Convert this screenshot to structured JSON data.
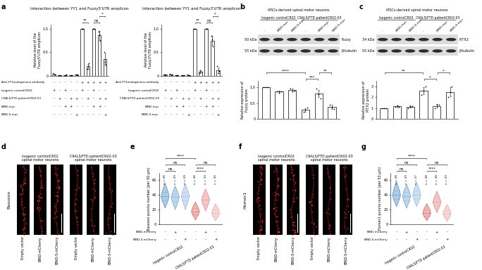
{
  "panel_labels": [
    "a",
    "b",
    "c",
    "d",
    "e",
    "f",
    "g"
  ],
  "chart_data": [
    {
      "type": "bar",
      "title": "Interaction between YY1 and Fuzzy5'UTR amplicon",
      "y_label": "Relative level of the\nFuzzy5'UTR amplicon",
      "categories": [
        null,
        null,
        null,
        null,
        null,
        null,
        null,
        null,
        null,
        null
      ],
      "values": [
        0.03,
        0.01,
        0.01,
        0.01,
        0.02,
        1.0,
        0.2,
        1.0,
        0.86,
        0.35
      ],
      "errors": [
        0.01,
        0.005,
        0.005,
        0.005,
        0.005,
        0,
        0.05,
        0,
        0.1,
        0.12
      ],
      "points": [
        [
          0.05,
          0.02,
          0.02
        ],
        [
          0.01,
          0.01,
          0.0
        ],
        [
          0.0,
          0.01,
          0.02
        ],
        [
          0.01,
          0.0,
          0.01
        ],
        [
          0.03,
          0.02,
          0.01
        ],
        [
          1,
          1,
          1
        ],
        [
          0.15,
          0.2,
          0.26
        ],
        [
          1,
          1,
          1
        ],
        [
          0.95,
          0.88,
          0.74
        ],
        [
          0.5,
          0.3,
          0.24
        ]
      ],
      "color": "#ffffff",
      "ylim": [
        0,
        1.1
      ],
      "yticks": [
        0,
        0.5,
        {
          "value": 1,
          "label": "1.0"
        }
      ],
      "tick_labels": "y",
      "annotations": [
        {
          "from": 5,
          "to": 6,
          "text": "**"
        },
        {
          "from": 7,
          "to": 8,
          "text": "ns"
        },
        {
          "from": 8,
          "to": 9,
          "text": "*"
        }
      ],
      "condition_rows": [
        {
          "label": "Anti-YY1endogenous antibody",
          "marks": [
            "-",
            "-",
            "-",
            "-",
            "-",
            "+",
            "+",
            "+",
            "+",
            "+"
          ]
        },
        {
          "label": "Isogenic controlCR02",
          "marks": [
            "+",
            "-",
            "+",
            "-",
            "-",
            "+",
            "-",
            "+",
            "-",
            "-"
          ]
        },
        {
          "label": "C9ALS/FTD patientCR02-03",
          "marks": [
            "-",
            "+",
            "-",
            "+",
            "+",
            "-",
            "+",
            "-",
            "+",
            "+"
          ]
        },
        {
          "label": "BIND-myc",
          "marks": [
            "-",
            "-",
            "+",
            "+",
            "-",
            "-",
            "-",
            "+",
            "+",
            "-"
          ]
        },
        {
          "label": "BIND-S-myc",
          "marks": [
            "-",
            "-",
            "-",
            "-",
            "+",
            "-",
            "-",
            "-",
            "-",
            "+"
          ]
        }
      ]
    },
    {
      "type": "bar",
      "title": "Interaction between YY1 and Fuzzy3'UTR amplicon",
      "y_label": "Relative level of the\nFuzzy3'UTR amplicon",
      "categories": [
        null,
        null,
        null,
        null,
        null,
        null,
        null,
        null,
        null,
        null
      ],
      "values": [
        0.02,
        0.02,
        0.01,
        0.01,
        0.01,
        1.0,
        0.08,
        1.0,
        0.75,
        0.12
      ],
      "errors": [
        0.01,
        0.01,
        0.005,
        0.005,
        0.005,
        0,
        0.03,
        0,
        0.1,
        0.06
      ],
      "points": [
        [
          0.03,
          0.02,
          0.01
        ],
        [
          0.04,
          0.01,
          0.02
        ],
        [
          0.01,
          0.0,
          0.01
        ],
        [
          0.01,
          0.0,
          0.01
        ],
        [
          0.02,
          0.01,
          0.0
        ],
        [
          1,
          1,
          1
        ],
        [
          0.05,
          0.12,
          0.08
        ],
        [
          1,
          1,
          1
        ],
        [
          0.85,
          0.78,
          0.62
        ],
        [
          0.2,
          0.06,
          0.1
        ]
      ],
      "color": "#ffffff",
      "ylim": [
        0,
        1.1
      ],
      "yticks": [
        0,
        0.5,
        {
          "value": 1,
          "label": "1.0"
        }
      ],
      "tick_labels": "y",
      "annotations": [
        {
          "from": 5,
          "to": 6,
          "text": "**"
        },
        {
          "from": 7,
          "to": 8,
          "text": "ns"
        },
        {
          "from": 8,
          "to": 9,
          "text": "*"
        }
      ],
      "condition_rows": [
        {
          "label": "Anti-YY1endogenous antibody",
          "marks": [
            "-",
            "-",
            "-",
            "-",
            "-",
            "+",
            "+",
            "+",
            "+",
            "+"
          ]
        },
        {
          "label": "Isogenic controlCR02",
          "marks": [
            "+",
            "-",
            "+",
            "-",
            "-",
            "+",
            "-",
            "+",
            "-",
            "-"
          ]
        },
        {
          "label": "C9ALS/FTD patientCR02-03",
          "marks": [
            "-",
            "+",
            "-",
            "+",
            "+",
            "-",
            "+",
            "-",
            "+",
            "+"
          ]
        },
        {
          "label": "BIND-myc",
          "marks": [
            "-",
            "-",
            "+",
            "+",
            "-",
            "-",
            "-",
            "+",
            "+",
            "-"
          ]
        },
        {
          "label": "BIND-S-myc",
          "marks": [
            "-",
            "-",
            "-",
            "-",
            "+",
            "-",
            "-",
            "-",
            "-",
            "+"
          ]
        }
      ]
    },
    {
      "type": "bar",
      "y_label": "Relative expression of\nFuzzy protein",
      "categories": [
        null,
        null,
        null,
        null,
        null,
        null
      ],
      "values": [
        1.0,
        0.86,
        0.92,
        0.28,
        0.8,
        0.38
      ],
      "errors": [
        0,
        0.04,
        0.05,
        0.06,
        0.12,
        0.06
      ],
      "points": [
        [
          1,
          1,
          1
        ],
        [
          0.88,
          0.82,
          0.87
        ],
        [
          0.97,
          0.88,
          0.9
        ],
        [
          0.22,
          0.28,
          0.35
        ],
        [
          0.95,
          0.78,
          0.65
        ],
        [
          0.44,
          0.36,
          0.32
        ]
      ],
      "color": "#ffffff",
      "ylim": [
        0,
        1.2
      ],
      "yticks": [
        0,
        0.5,
        {
          "value": 1,
          "label": "1.0"
        }
      ],
      "tick_labels": "y",
      "annotations": [
        {
          "from": 0,
          "to": 3,
          "text": "****"
        },
        {
          "from": 3,
          "to": 4,
          "text": "***"
        },
        {
          "from": 4,
          "to": 5,
          "text": "**"
        }
      ]
    },
    {
      "type": "bar",
      "y_label": "Relative expression of\nPITX2 protein",
      "categories": [
        null,
        null,
        null,
        null,
        null,
        null
      ],
      "values": [
        1.0,
        1.15,
        1.12,
        2.6,
        1.2,
        2.5
      ],
      "errors": [
        0,
        0.08,
        0.1,
        0.35,
        0.15,
        0.45
      ],
      "points": [
        [
          1,
          1,
          1
        ],
        [
          1.1,
          1.25,
          1.1
        ],
        [
          1.0,
          1.2,
          1.15
        ],
        [
          2.2,
          2.6,
          3.0
        ],
        [
          1.0,
          1.3,
          1.3
        ],
        [
          2.0,
          2.5,
          3.0
        ]
      ],
      "color": "#ffffff",
      "ylim": [
        0,
        3.5
      ],
      "yticks": [
        0,
        1,
        2,
        3
      ],
      "tick_labels": "y",
      "annotations": [
        {
          "from": 0,
          "to": 3,
          "text": "**"
        },
        {
          "from": 3,
          "to": 4,
          "text": "*"
        },
        {
          "from": 4,
          "to": 5,
          "text": "*"
        }
      ]
    },
    {
      "type": "violin",
      "y_label": "Bassoon puncta number (per 50 µm)",
      "categories": [
        null,
        null,
        null,
        null,
        null,
        null
      ],
      "stats": [
        {
          "min": 22,
          "q1": 32,
          "median": 38,
          "q3": 44,
          "max": 56
        },
        {
          "min": 20,
          "q1": 31,
          "median": 37,
          "q3": 42,
          "max": 52
        },
        {
          "min": 20,
          "q1": 32,
          "median": 38,
          "q3": 44,
          "max": 55
        },
        {
          "min": 6,
          "q1": 13,
          "median": 17,
          "q3": 22,
          "max": 30
        },
        {
          "min": 18,
          "q1": 28,
          "median": 33,
          "q3": 38,
          "max": 48
        },
        {
          "min": 5,
          "q1": 11,
          "median": 15,
          "q3": 20,
          "max": 28
        }
      ],
      "n_labels": [
        "n = 28",
        "n = 29",
        "n = 29",
        "n = 28",
        "n = 33",
        "n = 30"
      ],
      "colors": [
        "#4f8fc6",
        "#6fa3d2",
        "#8fb8de",
        "#d9605f",
        "#e38584",
        "#eba7a6"
      ],
      "ylim": [
        0,
        70
      ],
      "yticks": [
        0,
        20,
        40,
        60
      ],
      "tick_labels": "y",
      "annotations": [
        {
          "from": 0,
          "to": 1,
          "text": "ns"
        },
        {
          "from": 0,
          "to": 2,
          "text": "ns"
        },
        {
          "from": 0,
          "to": 3,
          "text": "****"
        },
        {
          "from": 3,
          "to": 4,
          "text": "****"
        },
        {
          "from": 3,
          "to": 5,
          "text": "ns"
        }
      ],
      "condition_rows": [
        {
          "label": "BIND-mCherry",
          "marks": [
            "-",
            "+",
            "-",
            "-",
            "+",
            "-"
          ]
        },
        {
          "label": "BIND-S-mCherry",
          "marks": [
            "-",
            "-",
            "+",
            "-",
            "-",
            "+"
          ]
        }
      ],
      "group_labels": [
        "Isogenic controlCR02",
        "C9ALS/FTD patientCR02-03"
      ]
    },
    {
      "type": "violin",
      "y_label": "Homer1 puncta number (per 50 µm)",
      "categories": [
        null,
        null,
        null,
        null,
        null,
        null
      ],
      "stats": [
        {
          "min": 24,
          "q1": 34,
          "median": 40,
          "q3": 46,
          "max": 58
        },
        {
          "min": 22,
          "q1": 32,
          "median": 38,
          "q3": 44,
          "max": 54
        },
        {
          "min": 24,
          "q1": 34,
          "median": 40,
          "q3": 46,
          "max": 57
        },
        {
          "min": 5,
          "q1": 11,
          "median": 15,
          "q3": 20,
          "max": 28
        },
        {
          "min": 16,
          "q1": 25,
          "median": 30,
          "q3": 35,
          "max": 45
        },
        {
          "min": 4,
          "q1": 10,
          "median": 14,
          "q3": 19,
          "max": 27
        }
      ],
      "n_labels": [
        "n = 28",
        "n = 29",
        "n = 27",
        "n = 28",
        "n = 28",
        "n = 29"
      ],
      "colors": [
        "#4f8fc6",
        "#6fa3d2",
        "#8fb8de",
        "#d9605f",
        "#e38584",
        "#eba7a6"
      ],
      "ylim": [
        0,
        70
      ],
      "yticks": [
        0,
        20,
        40,
        60
      ],
      "tick_labels": "y",
      "annotations": [
        {
          "from": 0,
          "to": 1,
          "text": "ns"
        },
        {
          "from": 0,
          "to": 2,
          "text": "ns"
        },
        {
          "from": 0,
          "to": 3,
          "text": "****"
        },
        {
          "from": 3,
          "to": 4,
          "text": "****"
        },
        {
          "from": 3,
          "to": 5,
          "text": "ns"
        }
      ],
      "condition_rows": [
        {
          "label": "BIND-mCherry",
          "marks": [
            "-",
            "+",
            "-",
            "-",
            "+",
            "-"
          ]
        },
        {
          "label": "BIND-S-mCherry",
          "marks": [
            "-",
            "-",
            "+",
            "-",
            "-",
            "+"
          ]
        }
      ],
      "group_labels": [
        "Isogenic controlCR02",
        "C9ALS/FTD patientCR02-03"
      ]
    }
  ],
  "blots": [
    {
      "header": "iPSCs-derived spinal motor neurons",
      "groups": [
        "Isogenic controlCR02",
        "C9ALS/FTD patientCR02-03"
      ],
      "lanes": [
        "-",
        "BIND-myc",
        "BIND-S-myc",
        "-",
        "BIND-myc",
        "BIND-S-myc"
      ],
      "rows": [
        {
          "size": "50 kDa",
          "protein": "Fuzzy"
        },
        {
          "size": "55 kDa",
          "protein": "β-tubulin"
        }
      ]
    },
    {
      "header": "iPSCs-derived spinal motor neurons",
      "groups": [
        "Isogenic controlCR02",
        "C9ALS/FTD patientCR02-03"
      ],
      "lanes": [
        "-",
        "BIND-myc",
        "BIND-S-myc",
        "-",
        "BIND-myc",
        "BIND-S-myc"
      ],
      "rows": [
        {
          "size": "34 kDa",
          "protein": "PITX2"
        },
        {
          "size": "55 kDa",
          "protein": "β-tubulin"
        }
      ]
    }
  ],
  "images": [
    {
      "stain": "Bassoon",
      "groups": [
        "Isogenic controlCR02\nspinal motor neurons",
        "C9ALS/FTD patientCR02-03\nspinal motor neurons"
      ],
      "columns": [
        "Empty vector",
        "BIND-mCherry",
        "BIND-S-mCherry"
      ]
    },
    {
      "stain": "Homer1",
      "groups": [
        "Isogenic controlCR02\nspinal motor neurons",
        "C9ALS/FTD patientCR02-03\nspinal motor neurons"
      ],
      "columns": [
        "Empty vector",
        "BIND-mCherry",
        "BIND-S-mCherry"
      ]
    }
  ]
}
